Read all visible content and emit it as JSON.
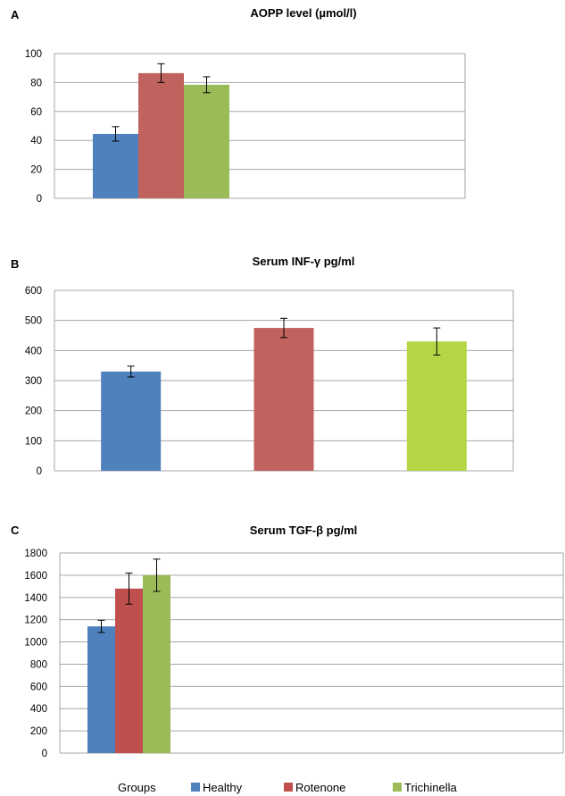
{
  "legend": {
    "label": "Groups",
    "items": [
      {
        "name": "Healthy",
        "color": "#4f81bd"
      },
      {
        "name": "Rotenone",
        "color": "#c0504d"
      },
      {
        "name": "Trichinella",
        "color": "#9bbb59"
      }
    ]
  },
  "chart_data": [
    {
      "panel": "A",
      "type": "bar",
      "title": "AOPP level   (µmol/l)",
      "categories": [
        "Healthy",
        "Rotenone",
        "Trichinella"
      ],
      "values": [
        44.5,
        86.5,
        78.5
      ],
      "errors": [
        5,
        6.5,
        5.5
      ],
      "colors": [
        "#4f81bd",
        "#c0625d",
        "#9bbb59"
      ],
      "ylim": [
        0,
        100
      ],
      "yticks": [
        "0",
        "20",
        "40",
        "60",
        "80",
        "100"
      ],
      "grid": true
    },
    {
      "panel": "B",
      "type": "bar",
      "title": "Serum  INF-γ pg/ml",
      "categories": [
        "Healthy",
        "Rotenone",
        "Trichinella"
      ],
      "values": [
        330,
        475,
        430
      ],
      "errors": [
        18,
        32,
        45
      ],
      "colors": [
        "#4f81bd",
        "#c0625d",
        "#b5d546"
      ],
      "ylim": [
        0,
        600
      ],
      "yticks": [
        "0",
        "100",
        "200",
        "300",
        "400",
        "500",
        "600"
      ],
      "grid": true
    },
    {
      "panel": "C",
      "type": "bar",
      "title": "Serum TGF-β pg/ml",
      "categories": [
        "Healthy",
        "Rotenone",
        "Trichinella"
      ],
      "values": [
        1140,
        1480,
        1600
      ],
      "errors": [
        55,
        140,
        145
      ],
      "colors": [
        "#4f81bd",
        "#c0504d",
        "#9bbb59"
      ],
      "ylim": [
        0,
        1800
      ],
      "yticks": [
        "0",
        "200",
        "400",
        "600",
        "800",
        "1000",
        "1200",
        "1400",
        "1600",
        "1800"
      ],
      "grid": true
    }
  ]
}
